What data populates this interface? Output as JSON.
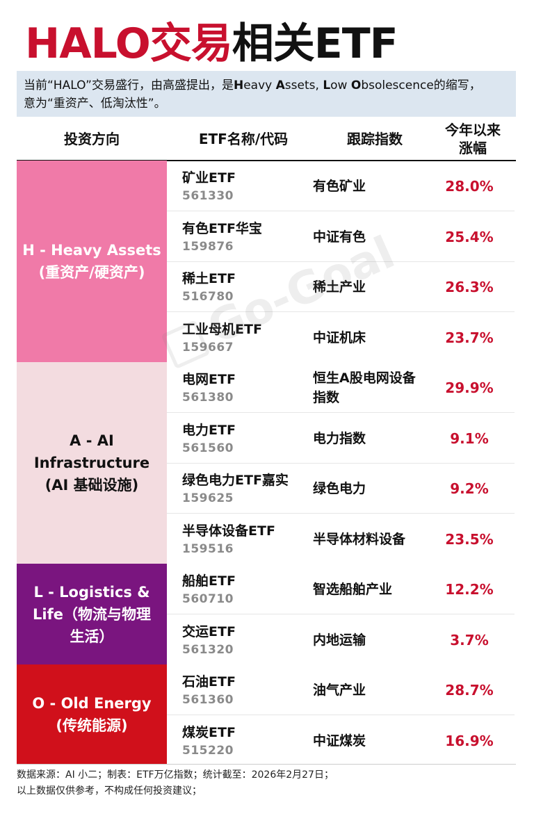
{
  "title": {
    "part_red": "HALO交易",
    "part_black": "相关ETF"
  },
  "intro": {
    "line1_a": "当前“HALO”交易盛行，由高盛提出，是",
    "h_b": "H",
    "h_r": "eavy ",
    "a_b": "A",
    "a_r": "ssets, ",
    "l_b": "L",
    "l_r": "ow ",
    "o_b": "O",
    "o_r": "bsolescence的缩写，",
    "line2": "意为“重资产、低淘汰性”。"
  },
  "header": {
    "col1": "投资方向",
    "col2": "ETF名称/代码",
    "col3": "跟踪指数",
    "col4_l1": "今年以来",
    "col4_l2": "涨幅"
  },
  "groups": [
    {
      "lines": [
        "H - Heavy Assets",
        "(重资产/硬资产)"
      ],
      "color": "#f07aa8",
      "text_color": "#ffffff"
    },
    {
      "lines": [
        "A - AI",
        "Infrastructure",
        "(AI 基础设施)"
      ],
      "color": "#f3dce0",
      "text_color": "#111111"
    },
    {
      "lines": [
        "L - Logistics &",
        "Life（物流与物理",
        "生活）"
      ],
      "color": "#7a157f",
      "text_color": "#ffffff"
    },
    {
      "lines": [
        "O - Old Energy",
        "(传统能源)"
      ],
      "color": "#d0101b",
      "text_color": "#ffffff"
    }
  ],
  "rows": [
    {
      "name": "矿业ETF",
      "code": "561330",
      "index": "有色矿业",
      "gain": "28.0%"
    },
    {
      "name": "有色ETF华宝",
      "code": "159876",
      "index": "中证有色",
      "gain": "25.4%"
    },
    {
      "name": "稀土ETF",
      "code": "516780",
      "index": "稀土产业",
      "gain": "26.3%"
    },
    {
      "name": "工业母机ETF",
      "code": "159667",
      "index": "中证机床",
      "gain": "23.7%"
    },
    {
      "name": "电网ETF",
      "code": "561380",
      "index": "恒生A股电网设备指数",
      "gain": "29.9%"
    },
    {
      "name": "电力ETF",
      "code": "561560",
      "index": "电力指数",
      "gain": "9.1%"
    },
    {
      "name": "绿色电力ETF嘉实",
      "code": "159625",
      "index": "绿色电力",
      "gain": "9.2%"
    },
    {
      "name": "半导体设备ETF",
      "code": "159516",
      "index": "半导体材料设备",
      "gain": "23.5%"
    },
    {
      "name": "船舶ETF",
      "code": "560710",
      "index": "智选船舶产业",
      "gain": "12.2%"
    },
    {
      "name": "交运ETF",
      "code": "561320",
      "index": "内地运输",
      "gain": "3.7%"
    },
    {
      "name": "石油ETF",
      "code": "561360",
      "index": "油气产业",
      "gain": "28.7%"
    },
    {
      "name": "煤炭ETF",
      "code": "515220",
      "index": "中证煤炭",
      "gain": "16.9%"
    }
  ],
  "footer": {
    "line1": "数据来源：AI 小二；制表：ETF万亿指数；统计截至：2026年2月27日；",
    "line2": "以上数据仅供参考，不构成任何投资建议；"
  },
  "watermark": "Go-Goal",
  "colors": {
    "accent_red": "#c8102e",
    "intro_bg": "#dce6f0"
  }
}
